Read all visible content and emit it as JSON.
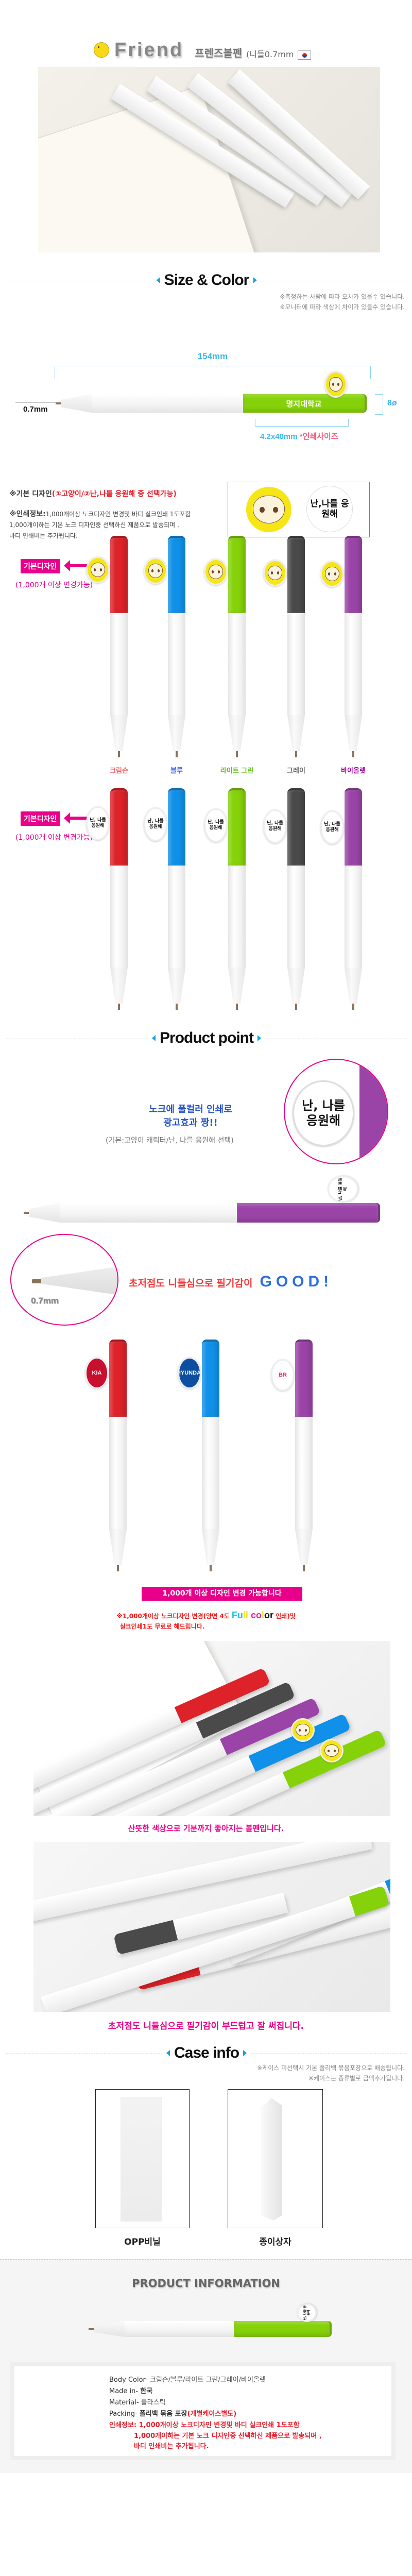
{
  "header": {
    "brand": "Friend",
    "product_name": "프렌즈볼펜",
    "spec": "(니들0.7mm",
    "icons": [
      "chick-icon",
      "korea-flag-icon"
    ]
  },
  "colors": {
    "crimson": "#dd2229",
    "blue": "#1090e8",
    "light_green": "#86d20a",
    "gray": "#4a4a4a",
    "violet": "#9b44a8",
    "pink": "#e8008a",
    "accent_blue": "#10a2e0",
    "dim_blue": "#3bb8ee"
  },
  "size_color": {
    "title": "Size & Color",
    "notes": [
      "※측정하는 사람에 따라 오차가 있을수 있습니다.",
      "※모니터에 따라 색상에 차이가 있을수 있습니다."
    ],
    "length": "154mm",
    "diameter": "8ø",
    "tip": "0.7mm",
    "print_size": "4.2x40mm",
    "print_size_note": "*인쇄사이즈",
    "sample_print": "명지대학교",
    "design_label": "※기본 디자인",
    "design_options": "(①고양이/②난,나를 응원해 중 선택가능)",
    "print_info_label": "※인쇄정보:",
    "print_info_lines": [
      "1,000개이상 노크디자인 변경및 바디 실크인쇄 1도포함",
      "1,000개이하는  기본 노크 디자인중 선택하신 제품으로 발송되며 ,",
      "바디 인쇄비는 추가됩니다."
    ],
    "badge_text": "난,나를 응원해"
  },
  "color_rows": {
    "default_label": "기본디자인",
    "change_note": "(1,000개 이상 변경가능)",
    "badge_text": "난, 나를 응원해",
    "names": [
      "크림슨",
      "블루",
      "라이트 그린",
      "그레이",
      "바이올렛"
    ]
  },
  "product_point": {
    "title": "Product point",
    "knock_line1": "노크에 풀컬러 인쇄로",
    "knock_line2": "광고효과 짱!!",
    "knock_sub": "(기본:고양이 캐릭터/난, 나를 응원해 선택)",
    "badge_text": "난, 나를 응원해",
    "tip_label": "0.7mm",
    "writing_text": "초저점도 니들심으로 필기감이",
    "writing_good": "GOOD!",
    "logos": [
      "KIA",
      "HYUNDAI",
      "BR"
    ],
    "banner": "1,000개 이상 디자인 변경 가능합니다",
    "free_line1_a": "※1,000개이상 노크디자인 변경(양면 4도 ",
    "full_color": [
      "Fu",
      "ll",
      " co",
      "l",
      "or"
    ],
    "free_line1_b": " 인쇄)및",
    "free_line2": "실크인쇄1도 무료로 해드립니다.",
    "caption1": "산뜻한 색상으로 기분까지 좋아지는 볼펜입니다.",
    "caption2": "초저점도 니들심으로 필기감이 부드럽고 잘 써집니다."
  },
  "case_info": {
    "title": "Case info",
    "notes": [
      "※케이스 미선택시 기본 폴리백 묶음포장으로 배송됩니다.",
      "※케이스는 종류별로 금액추가됩니다."
    ],
    "cases": [
      "OPP비닐",
      "종이상자"
    ]
  },
  "product_information": {
    "title": "PRODUCT INFORMATION",
    "rows": [
      {
        "label": "Body Color- ",
        "value": "크림슨/블루/라이트 그린/그레이/바이올렛"
      },
      {
        "label": "Made in- ",
        "value": "한국"
      },
      {
        "label": "Material- ",
        "value": "플라스틱"
      },
      {
        "label": "Packing- ",
        "value": "폴리백 묶음 포장",
        "extra": "(개별케이스별도)"
      }
    ],
    "print_label": "인쇄정보: ",
    "print_lines": [
      "1,000개이상 노크디자인 변경및 바디 실크인쇄 1도포함",
      "1,000개이하는  기본 노크 디자인중 선택하신 제품으로 발송되며 ,",
      "바디 인쇄비는 추가됩니다."
    ]
  }
}
